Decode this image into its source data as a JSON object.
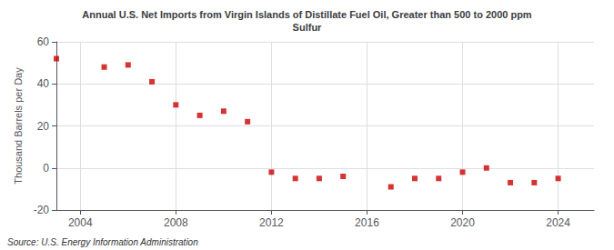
{
  "chart_data": {
    "type": "scatter",
    "title": "Annual U.S. Net Imports from Virgin Islands of Distillate Fuel Oil, Greater than 500 to 2000 ppm\nSulfur",
    "ylabel": "Thousand Barrels per Day",
    "annotations": [
      "Source: U.S. Energy Information Administration"
    ],
    "x": [
      2003,
      2005,
      2006,
      2007,
      2008,
      2009,
      2010,
      2011,
      2012,
      2013,
      2014,
      2015,
      2017,
      2018,
      2019,
      2020,
      2021,
      2022,
      2023,
      2024
    ],
    "values": [
      52,
      48,
      49,
      41,
      30,
      25,
      27,
      22,
      -2,
      -5,
      -5,
      -4,
      -9,
      -5,
      -5,
      -2,
      0,
      -7,
      -7,
      -5
    ],
    "color": "#cc0000",
    "marker": "square",
    "xlim": [
      2003,
      2025.5
    ],
    "xticks": [
      2004,
      2008,
      2012,
      2016,
      2020,
      2024
    ],
    "ylim": [
      -20,
      60
    ],
    "yticks": [
      -20,
      0,
      20,
      40,
      60
    ],
    "grid": true
  }
}
